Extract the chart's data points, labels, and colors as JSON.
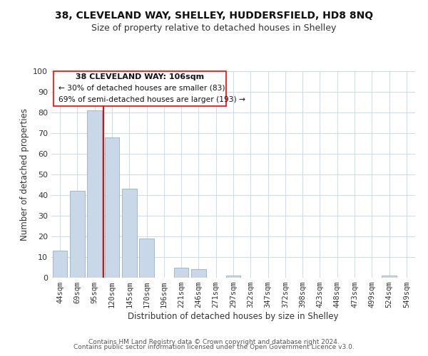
{
  "title": "38, CLEVELAND WAY, SHELLEY, HUDDERSFIELD, HD8 8NQ",
  "subtitle": "Size of property relative to detached houses in Shelley",
  "xlabel": "Distribution of detached houses by size in Shelley",
  "ylabel": "Number of detached properties",
  "bar_labels": [
    "44sqm",
    "69sqm",
    "95sqm",
    "120sqm",
    "145sqm",
    "170sqm",
    "196sqm",
    "221sqm",
    "246sqm",
    "271sqm",
    "297sqm",
    "322sqm",
    "347sqm",
    "372sqm",
    "398sqm",
    "423sqm",
    "448sqm",
    "473sqm",
    "499sqm",
    "524sqm",
    "549sqm"
  ],
  "bar_values": [
    13,
    42,
    81,
    68,
    43,
    19,
    0,
    5,
    4,
    0,
    1,
    0,
    0,
    0,
    0,
    0,
    0,
    0,
    0,
    1,
    0
  ],
  "bar_color": "#c8d8e8",
  "bar_edge_color": "#a0b8d0",
  "vline_x": 2.5,
  "vline_color": "red",
  "ylim": [
    0,
    100
  ],
  "yticks": [
    0,
    10,
    20,
    30,
    40,
    50,
    60,
    70,
    80,
    90,
    100
  ],
  "annotation_title": "38 CLEVELAND WAY: 106sqm",
  "annotation_line1": "← 30% of detached houses are smaller (83)",
  "annotation_line2": "69% of semi-detached houses are larger (193) →",
  "footer1": "Contains HM Land Registry data © Crown copyright and database right 2024.",
  "footer2": "Contains public sector information licensed under the Open Government Licence v3.0.",
  "background_color": "#ffffff",
  "grid_color": "#ccd9e8",
  "title_fontsize": 10,
  "subtitle_fontsize": 9,
  "axis_label_fontsize": 8.5,
  "tick_fontsize": 8,
  "annotation_fontsize": 8,
  "footer_fontsize": 6.5
}
